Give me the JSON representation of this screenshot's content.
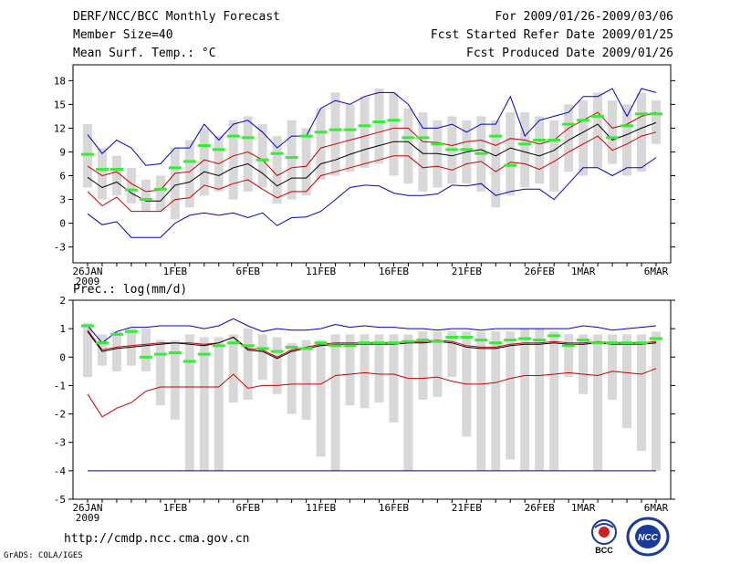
{
  "header": {
    "title": "DERF/NCC/BCC Monthly Forecast",
    "member_size": "Member Size=40",
    "variable": "Mean Surf. Temp.: °C",
    "period": "For 2009/01/26-2009/03/06",
    "started": "Fcst Started Refer Date 2009/01/25",
    "produced": "Fcst Produced Date 2009/01/26"
  },
  "footer": {
    "url": "http://cmdp.ncc.cma.gov.cn",
    "grads": "GrADS: COLA/IGES",
    "logo_left_text": "BCC",
    "logo_right_text": "NCC"
  },
  "colors": {
    "box": "#d8d8d8",
    "mean": "#000000",
    "sd": "#cc0000",
    "extreme": "#0000cc",
    "obs": "#33ee33"
  },
  "chart_data": [
    {
      "type": "box",
      "title": "Mean Surf. Temp.: °C",
      "ylabel": "°C",
      "ylim": [
        -5,
        20
      ],
      "yticks": [
        -3,
        0,
        3,
        6,
        9,
        12,
        15,
        18
      ],
      "xtick_labels": [
        {
          "day": 0,
          "label": "26JAN",
          "sub": "2009"
        },
        {
          "day": 6,
          "label": "1FEB"
        },
        {
          "day": 11,
          "label": "6FEB"
        },
        {
          "day": 16,
          "label": "11FEB"
        },
        {
          "day": 21,
          "label": "16FEB"
        },
        {
          "day": 26,
          "label": "21FEB"
        },
        {
          "day": 31,
          "label": "26FEB"
        },
        {
          "day": 34,
          "label": "1MAR"
        },
        {
          "day": 39,
          "label": "6MAR"
        }
      ],
      "days": 40,
      "box_low": [
        4.5,
        3.0,
        3.5,
        2.5,
        1.5,
        1.5,
        0.5,
        2.0,
        3.5,
        4.0,
        3.0,
        4.0,
        4.5,
        2.5,
        3.0,
        3.5,
        5.5,
        6.0,
        6.5,
        7.0,
        7.5,
        6.0,
        5.0,
        4.0,
        4.5,
        5.0,
        5.0,
        4.0,
        2.0,
        3.5,
        4.5,
        5.0,
        4.0,
        6.5,
        6.0,
        7.0,
        7.5,
        6.0,
        6.5,
        10.0
      ],
      "box_high": [
        12.5,
        9.5,
        8.5,
        7.0,
        5.5,
        6.0,
        9.5,
        10.5,
        12.0,
        11.0,
        13.0,
        13.5,
        12.5,
        11.0,
        13.0,
        12.0,
        14.5,
        16.5,
        15.0,
        16.0,
        17.0,
        16.5,
        14.5,
        14.0,
        13.0,
        13.5,
        13.0,
        13.5,
        13.0,
        14.0,
        14.0,
        13.5,
        13.0,
        15.0,
        15.5,
        16.5,
        15.5,
        15.0,
        16.5,
        15.5
      ],
      "mean": [
        5.8,
        4.5,
        5.2,
        3.8,
        2.8,
        2.8,
        4.8,
        5.2,
        6.5,
        6.0,
        7.0,
        7.5,
        6.3,
        4.7,
        5.7,
        5.7,
        7.5,
        8.0,
        8.7,
        9.3,
        9.8,
        10.3,
        10.3,
        8.8,
        8.8,
        8.5,
        9.0,
        9.3,
        8.5,
        9.5,
        9.0,
        8.5,
        9.2,
        10.5,
        11.5,
        12.5,
        10.5,
        11.2,
        12.0,
        12.7
      ],
      "upper_sd": [
        7.2,
        6.0,
        6.5,
        5.0,
        4.0,
        4.2,
        6.3,
        6.5,
        8.0,
        7.5,
        8.5,
        9.0,
        8.0,
        6.0,
        7.0,
        7.2,
        9.5,
        10.0,
        10.5,
        11.0,
        11.5,
        12.0,
        12.0,
        10.3,
        10.2,
        9.8,
        10.3,
        10.5,
        9.8,
        10.7,
        10.5,
        10.0,
        10.5,
        12.0,
        13.0,
        14.0,
        12.0,
        12.5,
        13.5,
        14.0
      ],
      "lower_sd": [
        4.0,
        2.2,
        3.3,
        1.5,
        1.5,
        1.5,
        3.0,
        3.2,
        4.8,
        4.3,
        5.0,
        5.5,
        4.3,
        3.2,
        4.0,
        4.0,
        6.0,
        6.5,
        7.0,
        7.5,
        8.0,
        8.5,
        8.5,
        7.0,
        7.2,
        6.7,
        7.5,
        7.8,
        6.5,
        7.7,
        7.5,
        6.8,
        7.8,
        9.0,
        10.0,
        11.0,
        9.2,
        10.0,
        11.0,
        11.5
      ],
      "upper_ext": [
        11.2,
        8.8,
        10.5,
        9.5,
        7.3,
        7.5,
        9.5,
        9.5,
        12.5,
        10.5,
        12.5,
        13.0,
        11.5,
        9.5,
        11.0,
        11.0,
        14.5,
        15.5,
        15.0,
        16.0,
        16.5,
        16.5,
        15.0,
        12.0,
        12.0,
        12.5,
        11.5,
        12.5,
        12.5,
        16.0,
        11.0,
        13.0,
        13.5,
        14.0,
        16.0,
        16.0,
        17.0,
        13.5,
        17.0,
        16.5
      ],
      "lower_ext": [
        1.2,
        -0.2,
        0.2,
        -1.8,
        -1.8,
        -1.8,
        0.0,
        1.0,
        1.3,
        1.0,
        1.3,
        0.7,
        1.3,
        -0.3,
        0.7,
        0.8,
        1.5,
        3.0,
        4.5,
        4.8,
        4.7,
        3.8,
        3.5,
        3.5,
        3.7,
        4.8,
        4.7,
        5.0,
        3.5,
        4.0,
        4.3,
        4.3,
        3.0,
        5.0,
        7.0,
        7.0,
        6.0,
        7.0,
        7.0,
        8.3
      ],
      "obs": [
        8.7,
        6.8,
        6.8,
        4.2,
        3.0,
        4.3,
        7.0,
        7.8,
        9.8,
        9.3,
        11.0,
        10.8,
        8.0,
        8.8,
        8.3,
        11.0,
        11.5,
        11.8,
        11.8,
        12.3,
        12.8,
        13.0,
        10.8,
        10.8,
        10.0,
        9.3,
        9.3,
        8.8,
        11.0,
        7.3,
        10.0,
        10.5,
        10.5,
        12.5,
        13.0,
        13.5,
        10.8,
        12.3,
        13.8,
        13.8
      ]
    },
    {
      "type": "box",
      "title": "Prec.: log(mm/d)",
      "ylabel": "log(mm/d)",
      "ylim": [
        -5,
        2
      ],
      "yticks": [
        -5,
        -4,
        -3,
        -2,
        -1,
        0,
        1,
        2
      ],
      "xtick_labels": [
        {
          "day": 0,
          "label": "26JAN",
          "sub": "2009"
        },
        {
          "day": 6,
          "label": "1FEB"
        },
        {
          "day": 11,
          "label": "6FEB"
        },
        {
          "day": 16,
          "label": "11FEB"
        },
        {
          "day": 21,
          "label": "16FEB"
        },
        {
          "day": 26,
          "label": "21FEB"
        },
        {
          "day": 31,
          "label": "26FEB"
        },
        {
          "day": 34,
          "label": "1MAR"
        },
        {
          "day": 39,
          "label": "6MAR"
        }
      ],
      "days": 40,
      "box_low": [
        -0.7,
        -0.3,
        -0.5,
        -0.3,
        -0.5,
        -1.7,
        -2.2,
        -4.0,
        -4.0,
        -4.0,
        -1.6,
        -1.5,
        -0.8,
        -1.3,
        -2.0,
        -2.2,
        -3.5,
        -4.0,
        -1.7,
        -1.8,
        -1.6,
        -2.3,
        -4.0,
        -1.5,
        -1.4,
        -0.7,
        -2.8,
        -4.0,
        -4.0,
        -3.6,
        -4.0,
        -4.0,
        -4.0,
        -0.7,
        -1.3,
        -4.0,
        -1.5,
        -2.5,
        -3.3,
        -4.0
      ],
      "box_high": [
        1.2,
        0.8,
        0.9,
        1.0,
        1.0,
        0.6,
        0.6,
        0.8,
        0.7,
        0.7,
        0.8,
        1.0,
        0.8,
        0.7,
        0.5,
        0.6,
        0.6,
        0.8,
        0.8,
        0.8,
        0.8,
        0.8,
        0.8,
        0.9,
        0.9,
        0.9,
        0.9,
        0.9,
        0.9,
        0.9,
        1.0,
        1.0,
        0.9,
        0.8,
        0.8,
        0.8,
        0.8,
        0.8,
        0.8,
        0.9
      ],
      "mean": [
        0.9,
        0.2,
        0.3,
        0.35,
        0.4,
        0.45,
        0.5,
        0.45,
        0.4,
        0.5,
        0.7,
        0.25,
        0.2,
        -0.05,
        0.2,
        0.3,
        0.4,
        0.45,
        0.45,
        0.45,
        0.45,
        0.45,
        0.5,
        0.5,
        0.55,
        0.5,
        0.35,
        0.3,
        0.3,
        0.4,
        0.45,
        0.45,
        0.5,
        0.45,
        0.45,
        0.5,
        0.45,
        0.45,
        0.45,
        0.5
      ],
      "upper_sd": [
        0.95,
        0.25,
        0.35,
        0.4,
        0.45,
        0.5,
        0.5,
        0.5,
        0.45,
        0.5,
        0.7,
        0.3,
        0.25,
        0.0,
        0.25,
        0.35,
        0.45,
        0.5,
        0.5,
        0.5,
        0.5,
        0.5,
        0.55,
        0.55,
        0.6,
        0.55,
        0.4,
        0.35,
        0.35,
        0.45,
        0.5,
        0.5,
        0.55,
        0.5,
        0.5,
        0.55,
        0.5,
        0.5,
        0.5,
        0.55
      ],
      "lower_sd": [
        -1.3,
        -2.1,
        -1.8,
        -1.6,
        -1.2,
        -1.05,
        -1.05,
        -1.05,
        -1.05,
        -1.05,
        -0.6,
        -1.1,
        -1.0,
        -1.0,
        -0.95,
        -0.95,
        -0.95,
        -0.65,
        -0.6,
        -0.55,
        -0.6,
        -0.6,
        -0.75,
        -0.75,
        -0.7,
        -0.85,
        -0.95,
        -0.95,
        -0.9,
        -0.75,
        -0.65,
        -0.65,
        -0.6,
        -0.55,
        -0.6,
        -0.65,
        -0.5,
        -0.55,
        -0.6,
        -0.4
      ],
      "upper_ext": [
        1.1,
        0.5,
        0.9,
        1.05,
        1.05,
        1.1,
        1.1,
        1.1,
        1.0,
        1.1,
        1.35,
        1.1,
        0.9,
        1.0,
        0.95,
        0.95,
        1.0,
        1.15,
        1.05,
        1.1,
        1.05,
        1.05,
        1.0,
        1.0,
        0.95,
        1.0,
        1.0,
        0.95,
        1.0,
        1.0,
        1.0,
        1.0,
        1.0,
        1.0,
        1.1,
        1.05,
        0.95,
        1.0,
        1.05,
        1.1
      ],
      "lower_ext": [
        -4,
        -4,
        -4,
        -4,
        -4,
        -4,
        -4,
        -4,
        -4,
        -4,
        -4,
        -4,
        -4,
        -4,
        -4,
        -4,
        -4,
        -4,
        -4,
        -4,
        -4,
        -4,
        -4,
        -4,
        -4,
        -4,
        -4,
        -4,
        -4,
        -4,
        -4,
        -4,
        -4,
        -4,
        -4,
        -4,
        -4,
        -4,
        -4,
        -4
      ],
      "obs": [
        1.1,
        0.5,
        0.8,
        0.9,
        0.0,
        0.1,
        0.15,
        -0.15,
        0.1,
        0.4,
        0.5,
        0.4,
        0.3,
        0.2,
        0.35,
        0.3,
        0.5,
        0.4,
        0.4,
        0.5,
        0.5,
        0.5,
        0.55,
        0.6,
        0.55,
        0.7,
        0.7,
        0.6,
        0.5,
        0.6,
        0.65,
        0.6,
        0.75,
        0.4,
        0.6,
        0.5,
        0.5,
        0.5,
        0.5,
        0.65
      ]
    }
  ]
}
